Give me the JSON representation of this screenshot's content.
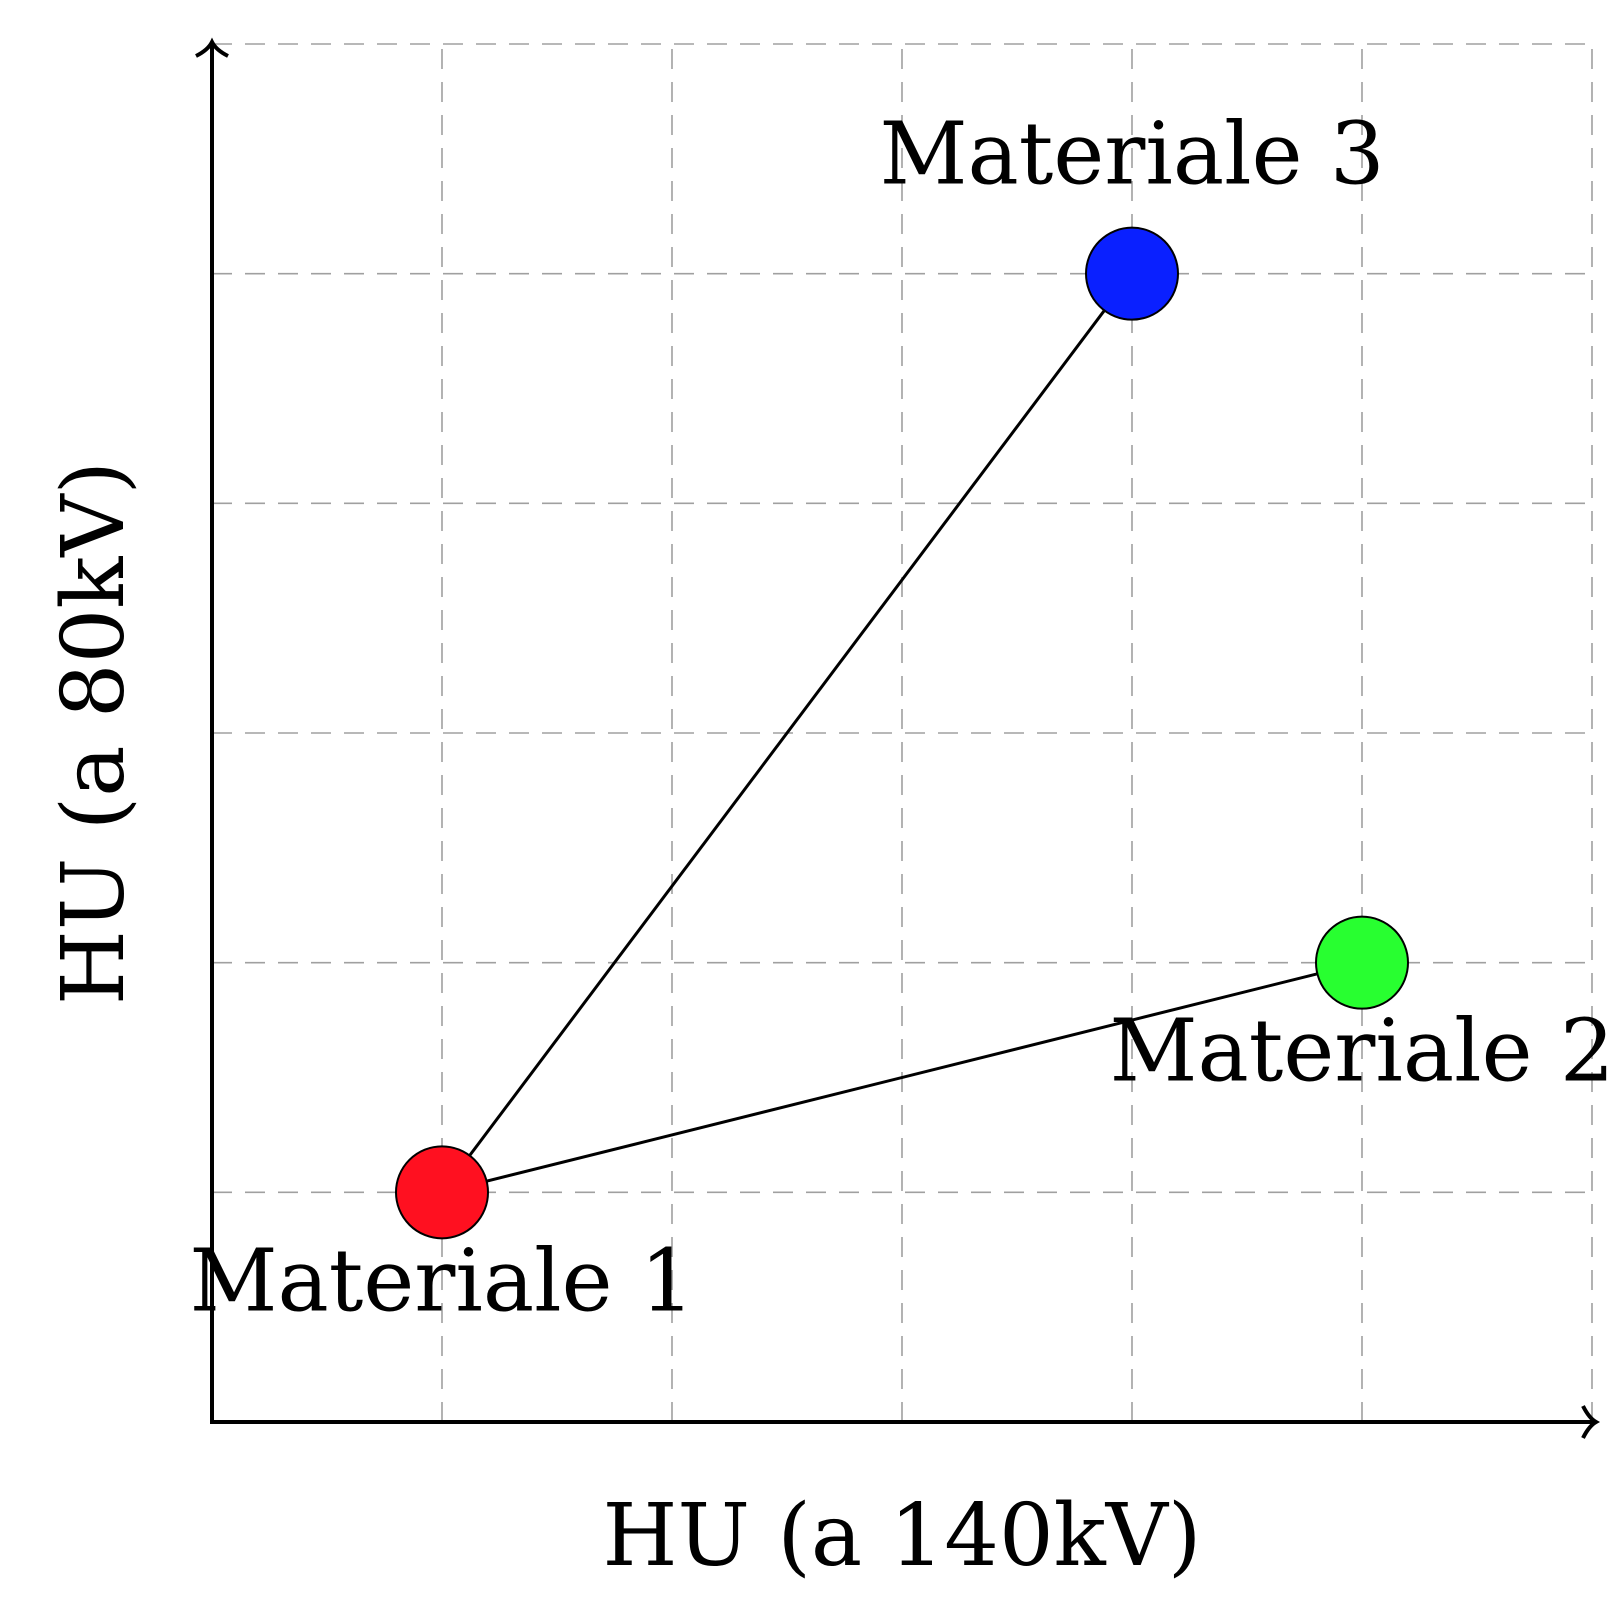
{
  "chart_data": {
    "type": "scatter",
    "xlabel": "HU (a 140kV)",
    "ylabel": "HU (a 80kV)",
    "xlim": [
      0,
      6
    ],
    "ylim": [
      0,
      6
    ],
    "grid": true,
    "points": [
      {
        "label": "Materiale 1",
        "x": 1,
        "y": 1,
        "color": "#ff1020",
        "label_position": "below"
      },
      {
        "label": "Materiale 2",
        "x": 5,
        "y": 2,
        "color": "#28ff30",
        "label_position": "below"
      },
      {
        "label": "Materiale 3",
        "x": 4,
        "y": 5,
        "color": "#0a20ff",
        "label_position": "above"
      }
    ],
    "connections": [
      [
        "Materiale 1",
        "Materiale 3"
      ],
      [
        "Materiale 1",
        "Materiale 2"
      ]
    ]
  }
}
